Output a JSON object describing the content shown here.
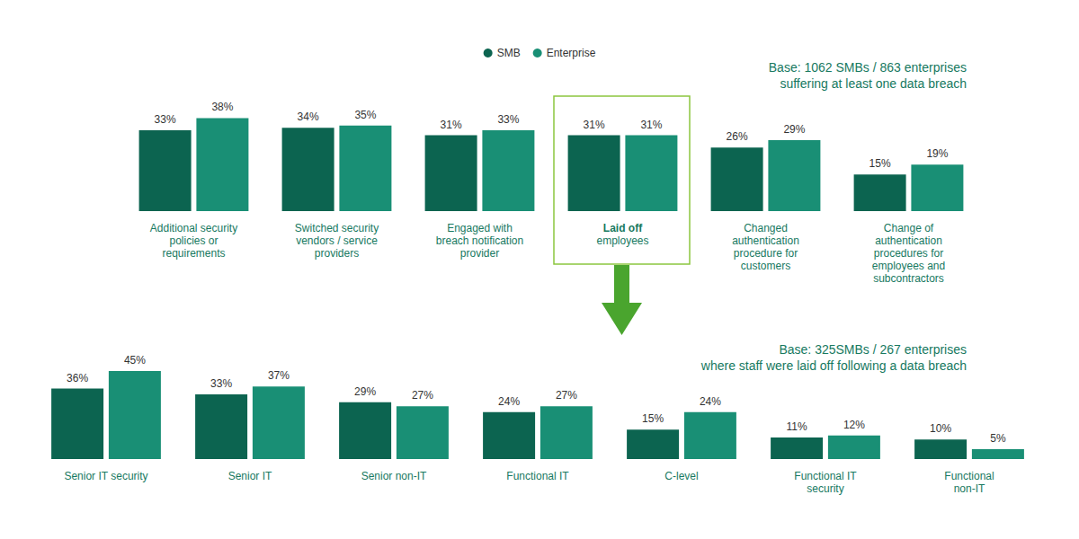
{
  "chart_data": [
    {
      "type": "bar",
      "subtitle": "Base: 1062 SMBs / 863 enterprises\nsuffering at least one data breach",
      "categories": [
        "Additional security\npolicies or\nrequirements",
        "Switched security\nvendors / service\nproviders",
        "Engaged with\nbreach notification\nprovider",
        "Laid off\nemployees",
        "Changed\nauthentication\nprocedure for\ncustomers",
        "Change of\nauthentication\nprocedures for\nemployees and\nsubcontractors"
      ],
      "series": [
        {
          "name": "SMB",
          "color": "#0c6450",
          "values": [
            33,
            34,
            31,
            31,
            26,
            15
          ],
          "value_labels": [
            "33%",
            "34%",
            "31%",
            "31%",
            "26%",
            "15%"
          ]
        },
        {
          "name": "Enterprise",
          "color": "#198f75",
          "values": [
            38,
            35,
            33,
            31,
            29,
            19
          ],
          "value_labels": [
            "38%",
            "35%",
            "33%",
            "31%",
            "29%",
            "19%"
          ]
        }
      ],
      "ylim": [
        0,
        40
      ],
      "legend": "top",
      "data_labels": true,
      "tick_labels": "x",
      "grid": false
    },
    {
      "type": "bar",
      "subtitle": "Base: 325SMBs / 267 enterprises\nwhere staff were laid off following a data breach",
      "categories": [
        "Senior IT security",
        "Senior IT",
        "Senior non-IT",
        "Functional IT",
        "C-level",
        "Functional IT\nsecurity",
        "Functional\nnon-IT"
      ],
      "series": [
        {
          "name": "SMB",
          "color": "#0c6450",
          "values": [
            36,
            33,
            29,
            24,
            15,
            11,
            10
          ],
          "value_labels": [
            "36%",
            "33%",
            "29%",
            "24%",
            "15%",
            "11%",
            "10%"
          ]
        },
        {
          "name": "Enterprise",
          "color": "#198f75",
          "values": [
            45,
            37,
            27,
            27,
            24,
            12,
            5
          ],
          "value_labels": [
            "45%",
            "37%",
            "27%",
            "27%",
            "24%",
            "12%",
            "5%"
          ]
        }
      ],
      "ylim": [
        0,
        50
      ],
      "data_labels": true,
      "tick_labels": "x",
      "grid": false
    }
  ]
}
